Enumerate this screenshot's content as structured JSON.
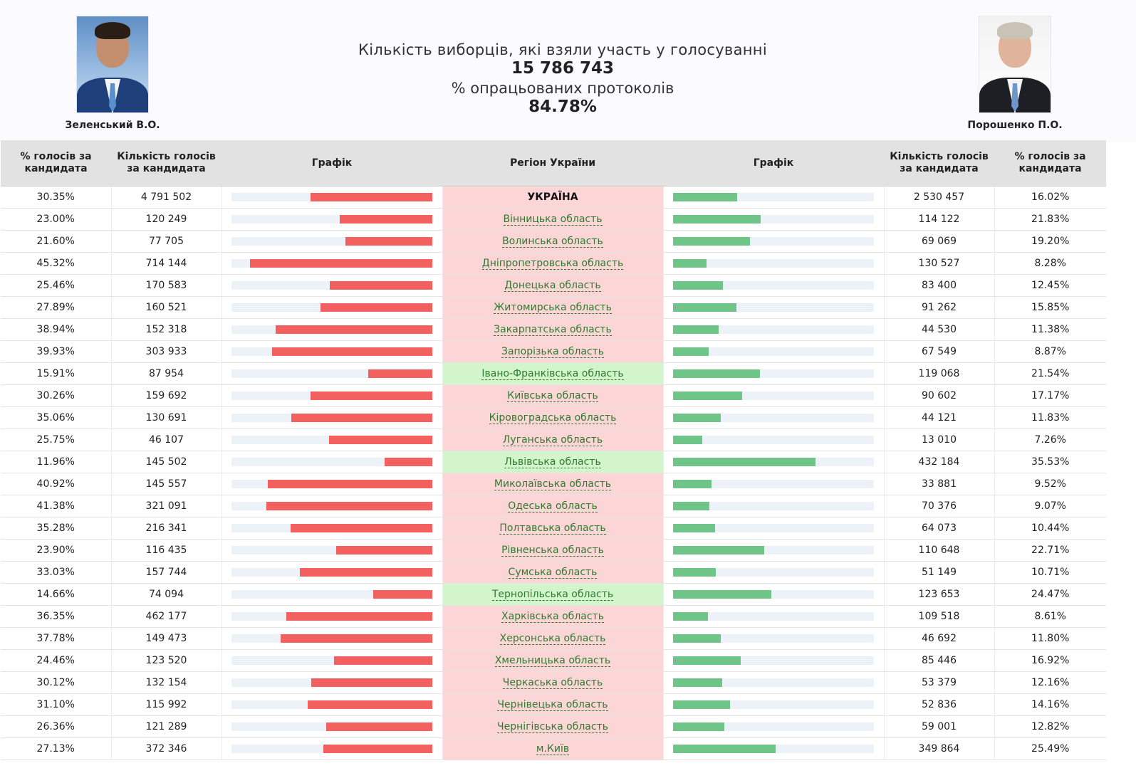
{
  "header": {
    "voters_label": "Кількість виборців, які взяли участь у голосуванні",
    "voters_value": "15 786 743",
    "protocols_label": "% опрацьованих протоколів",
    "protocols_value": "84.78%"
  },
  "candidates": {
    "left_name": "Зеленський В.О.",
    "right_name": "Порошенко П.О."
  },
  "columns": {
    "pct_left": "% голосів за кандидата",
    "count_left": "Кількість голосів за кандидата",
    "chart_left": "Графік",
    "region": "Регіон України",
    "chart_right": "Графік",
    "count_right": "Кількість голосів за кандидата",
    "pct_right": "% голосів за кандидата"
  },
  "colors": {
    "zelensky_bar": "#f26060",
    "poroshenko_bar": "#6fc488",
    "region_zelensky_win": "#fcd6d6",
    "region_poroshenko_win": "#d3f5cb",
    "header_bg": "#e2e2e2"
  },
  "rows": [
    {
      "region": "УКРАЇНА",
      "z_pct": "30.35%",
      "z_votes": "4 791 502",
      "p_votes": "2 530 457",
      "p_pct": "16.02%",
      "winner": "z",
      "total": true
    },
    {
      "region": "Вінницька область",
      "z_pct": "23.00%",
      "z_votes": "120 249",
      "p_votes": "114 122",
      "p_pct": "21.83%",
      "winner": "z"
    },
    {
      "region": "Волинська область",
      "z_pct": "21.60%",
      "z_votes": "77 705",
      "p_votes": "69 069",
      "p_pct": "19.20%",
      "winner": "z"
    },
    {
      "region": "Дніпропетровська область",
      "z_pct": "45.32%",
      "z_votes": "714 144",
      "p_votes": "130 527",
      "p_pct": "8.28%",
      "winner": "z"
    },
    {
      "region": "Донецька область",
      "z_pct": "25.46%",
      "z_votes": "170 583",
      "p_votes": "83 400",
      "p_pct": "12.45%",
      "winner": "z"
    },
    {
      "region": "Житомирська область",
      "z_pct": "27.89%",
      "z_votes": "160 521",
      "p_votes": "91 262",
      "p_pct": "15.85%",
      "winner": "z"
    },
    {
      "region": "Закарпатська область",
      "z_pct": "38.94%",
      "z_votes": "152 318",
      "p_votes": "44 530",
      "p_pct": "11.38%",
      "winner": "z"
    },
    {
      "region": "Запорізька область",
      "z_pct": "39.93%",
      "z_votes": "303 933",
      "p_votes": "67 549",
      "p_pct": "8.87%",
      "winner": "z"
    },
    {
      "region": "Івано-Франківська область",
      "z_pct": "15.91%",
      "z_votes": "87 954",
      "p_votes": "119 068",
      "p_pct": "21.54%",
      "winner": "p"
    },
    {
      "region": "Київська область",
      "z_pct": "30.26%",
      "z_votes": "159 692",
      "p_votes": "90 602",
      "p_pct": "17.17%",
      "winner": "z"
    },
    {
      "region": "Кіровоградська область",
      "z_pct": "35.06%",
      "z_votes": "130 691",
      "p_votes": "44 121",
      "p_pct": "11.83%",
      "winner": "z"
    },
    {
      "region": "Луганська область",
      "z_pct": "25.75%",
      "z_votes": "46 107",
      "p_votes": "13 010",
      "p_pct": "7.26%",
      "winner": "z"
    },
    {
      "region": "Львівська область",
      "z_pct": "11.96%",
      "z_votes": "145 502",
      "p_votes": "432 184",
      "p_pct": "35.53%",
      "winner": "p"
    },
    {
      "region": "Миколаївська область",
      "z_pct": "40.92%",
      "z_votes": "145 557",
      "p_votes": "33 881",
      "p_pct": "9.52%",
      "winner": "z"
    },
    {
      "region": "Одеська область",
      "z_pct": "41.38%",
      "z_votes": "321 091",
      "p_votes": "70 376",
      "p_pct": "9.07%",
      "winner": "z"
    },
    {
      "region": "Полтавська область",
      "z_pct": "35.28%",
      "z_votes": "216 341",
      "p_votes": "64 073",
      "p_pct": "10.44%",
      "winner": "z"
    },
    {
      "region": "Рівненська область",
      "z_pct": "23.90%",
      "z_votes": "116 435",
      "p_votes": "110 648",
      "p_pct": "22.71%",
      "winner": "z"
    },
    {
      "region": "Сумська область",
      "z_pct": "33.03%",
      "z_votes": "157 744",
      "p_votes": "51 149",
      "p_pct": "10.71%",
      "winner": "z"
    },
    {
      "region": "Тернопільська область",
      "z_pct": "14.66%",
      "z_votes": "74 094",
      "p_votes": "123 653",
      "p_pct": "24.47%",
      "winner": "p"
    },
    {
      "region": "Харківська область",
      "z_pct": "36.35%",
      "z_votes": "462 177",
      "p_votes": "109 518",
      "p_pct": "8.61%",
      "winner": "z"
    },
    {
      "region": "Херсонська область",
      "z_pct": "37.78%",
      "z_votes": "149 473",
      "p_votes": "46 692",
      "p_pct": "11.80%",
      "winner": "z"
    },
    {
      "region": "Хмельницька область",
      "z_pct": "24.46%",
      "z_votes": "123 520",
      "p_votes": "85 446",
      "p_pct": "16.92%",
      "winner": "z"
    },
    {
      "region": "Черкаська область",
      "z_pct": "30.12%",
      "z_votes": "132 154",
      "p_votes": "53 379",
      "p_pct": "12.16%",
      "winner": "z"
    },
    {
      "region": "Чернівецька область",
      "z_pct": "31.10%",
      "z_votes": "115 992",
      "p_votes": "52 836",
      "p_pct": "14.16%",
      "winner": "z"
    },
    {
      "region": "Чернігівська область",
      "z_pct": "26.36%",
      "z_votes": "121 289",
      "p_votes": "59 001",
      "p_pct": "12.82%",
      "winner": "z"
    },
    {
      "region": "м.Київ",
      "z_pct": "27.13%",
      "z_votes": "372 346",
      "p_votes": "349 864",
      "p_pct": "25.49%",
      "winner": "z"
    }
  ]
}
